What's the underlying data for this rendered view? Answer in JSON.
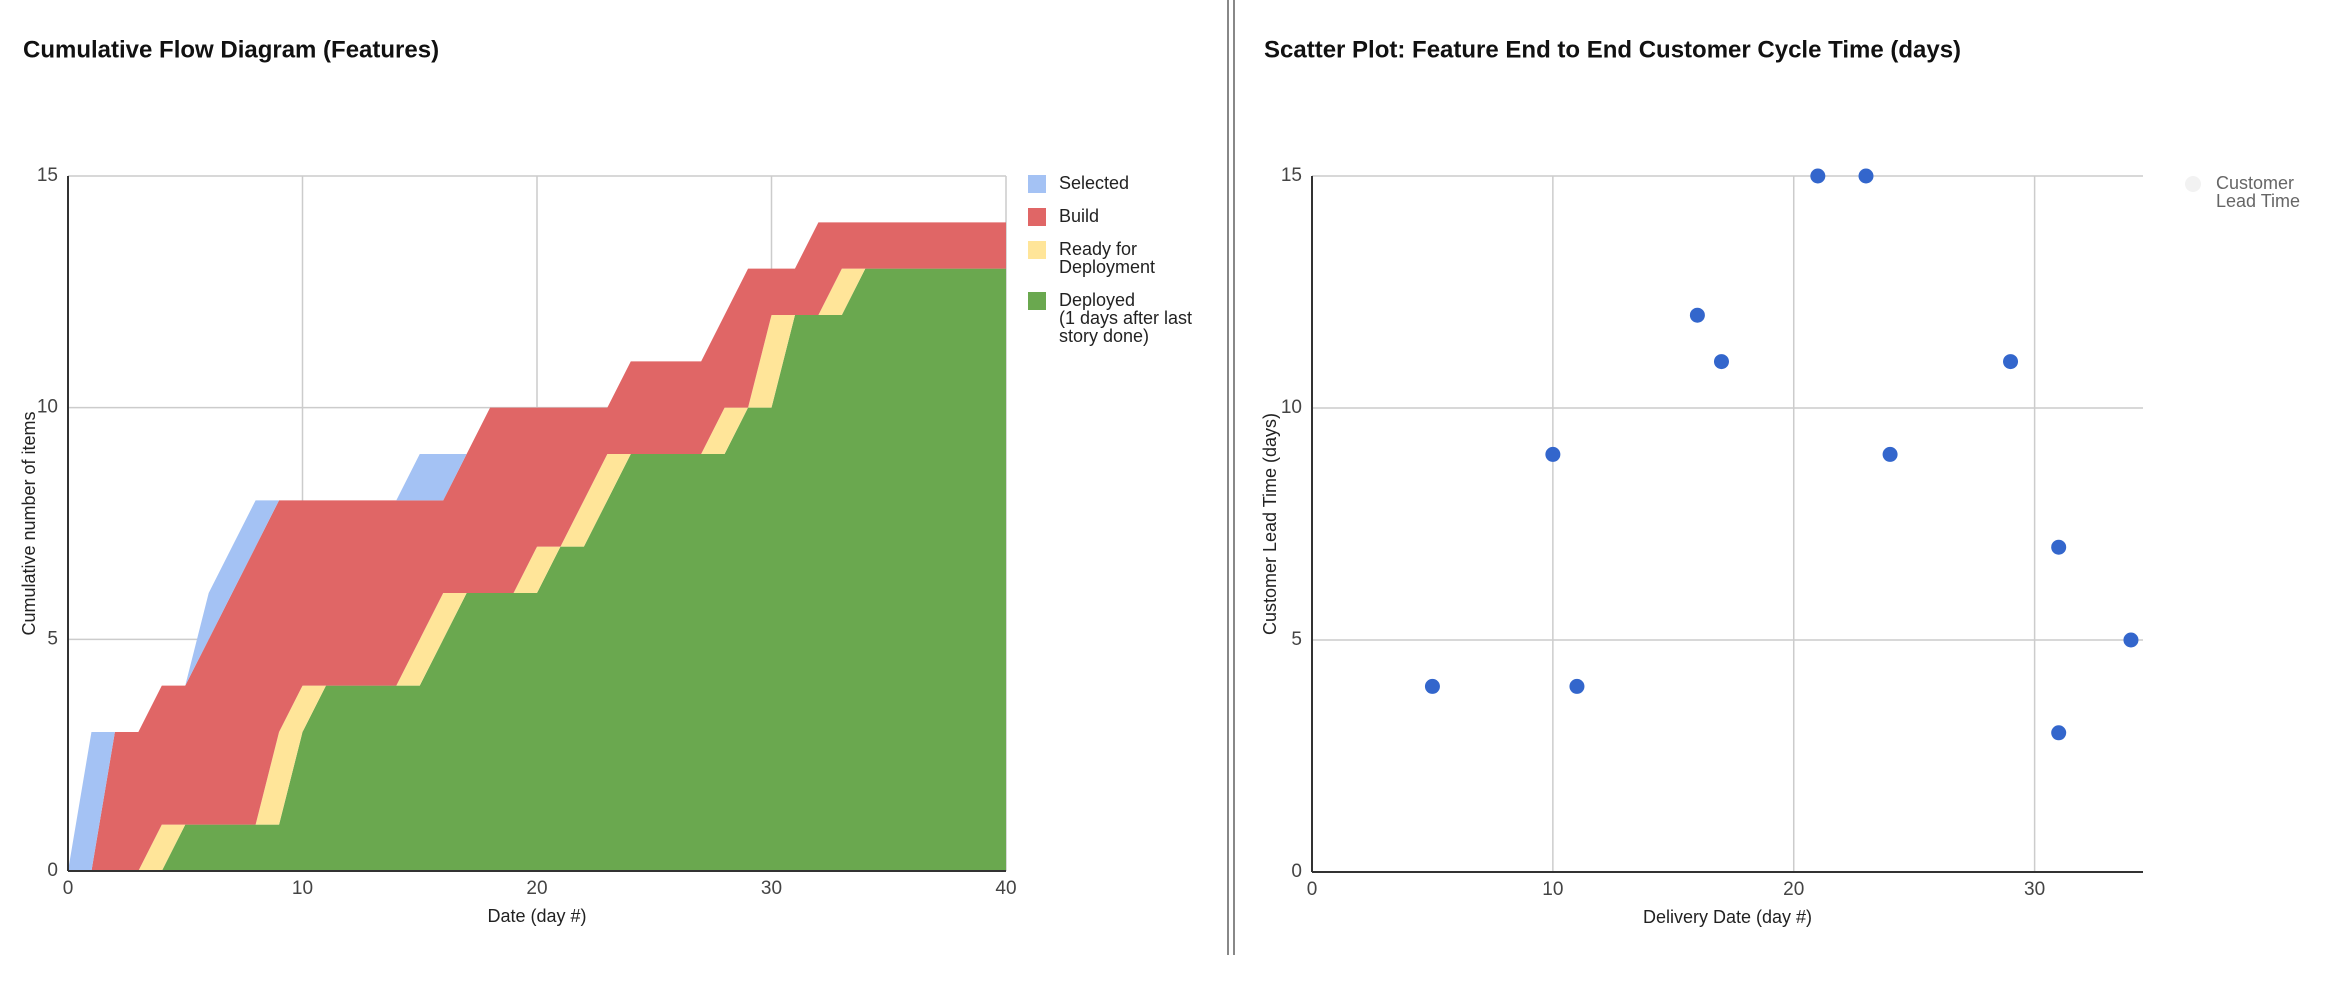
{
  "chart_data": [
    {
      "type": "stacked_area",
      "title": "Cumulative Flow Diagram (Features)",
      "x_label": "Date (day #)",
      "y_label": "Cumulative number of items",
      "x": [
        0,
        1,
        2,
        3,
        4,
        5,
        6,
        7,
        8,
        9,
        10,
        11,
        12,
        13,
        14,
        15,
        16,
        17,
        18,
        19,
        20,
        21,
        22,
        23,
        24,
        25,
        26,
        27,
        28,
        29,
        30,
        31,
        32,
        33,
        34,
        35,
        36,
        37,
        38,
        39,
        40
      ],
      "series": [
        {
          "name": "Selected",
          "color": "#a4c2f4",
          "values": [
            0,
            3,
            0,
            0,
            0,
            0,
            1,
            1,
            1,
            0,
            0,
            0,
            0,
            0,
            0,
            1,
            1,
            0,
            0,
            0,
            0,
            0,
            0,
            0,
            0,
            0,
            0,
            0,
            0,
            0,
            0,
            0,
            0,
            0,
            0,
            0,
            0,
            0,
            0,
            0,
            0
          ]
        },
        {
          "name": "Build",
          "color": "#e06666",
          "values": [
            0,
            0,
            3,
            3,
            3,
            3,
            4,
            5,
            6,
            5,
            4,
            4,
            4,
            4,
            4,
            3,
            2,
            3,
            4,
            4,
            3,
            3,
            2,
            1,
            2,
            2,
            2,
            2,
            2,
            3,
            1,
            1,
            2,
            1,
            1,
            1,
            1,
            1,
            1,
            1,
            1
          ]
        },
        {
          "name": "Ready for Deployment",
          "color": "#ffe599",
          "values": [
            0,
            0,
            0,
            0,
            1,
            0,
            0,
            0,
            0,
            2,
            1,
            0,
            0,
            0,
            0,
            1,
            1,
            0,
            0,
            0,
            1,
            0,
            1,
            1,
            0,
            0,
            0,
            0,
            1,
            0,
            2,
            0,
            0,
            1,
            0,
            0,
            0,
            0,
            0,
            0,
            0
          ]
        },
        {
          "name": "Deployed (1 days after last story done)",
          "color": "#6aa84f",
          "values": [
            0,
            0,
            0,
            0,
            0,
            1,
            1,
            1,
            1,
            1,
            3,
            4,
            4,
            4,
            4,
            4,
            5,
            6,
            6,
            6,
            6,
            7,
            7,
            8,
            9,
            9,
            9,
            9,
            9,
            10,
            10,
            12,
            12,
            12,
            13,
            13,
            13,
            13,
            13,
            13,
            13
          ]
        }
      ],
      "xlim": [
        0,
        40
      ],
      "xticks": [
        0,
        10,
        20,
        30,
        40
      ],
      "ylim": [
        0,
        15
      ],
      "yticks": [
        0,
        5,
        10,
        15
      ],
      "grid": true,
      "legend": "right"
    },
    {
      "type": "scatter",
      "title": "Scatter Plot: Feature End to End Customer Cycle Time (days)",
      "x_label": "Delivery Date (day #)",
      "y_label": "Customer Lead Time (days)",
      "x": [
        5,
        10,
        11,
        16,
        17,
        21,
        23,
        24,
        29,
        31,
        31,
        34
      ],
      "series": [
        {
          "name": "Customer Lead Time",
          "color": "#3366cc",
          "values": [
            4,
            9,
            4,
            12,
            11,
            15,
            15,
            9,
            11,
            7,
            3,
            5
          ]
        }
      ],
      "xlim": [
        0,
        34.5
      ],
      "xticks": [
        0,
        10,
        20,
        30
      ],
      "ylim": [
        0,
        15
      ],
      "yticks": [
        0,
        5,
        10,
        15
      ],
      "grid": true,
      "legend": "right"
    }
  ]
}
